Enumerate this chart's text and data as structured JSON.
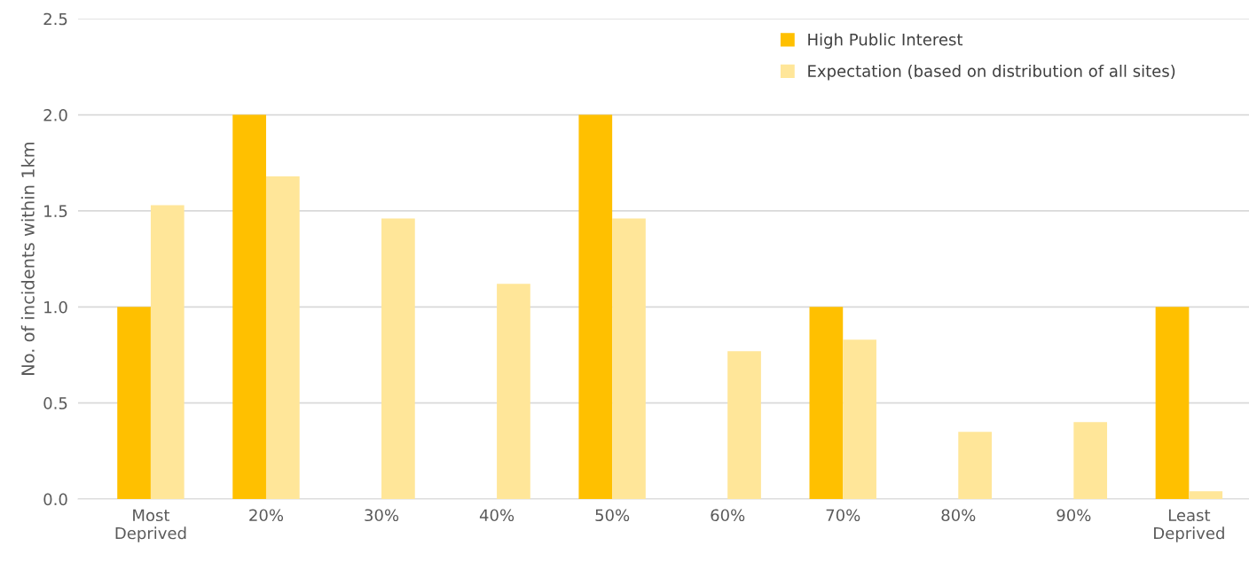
{
  "chart_data": {
    "type": "bar",
    "ylabel": "No. of incidents within 1km",
    "categories": [
      "Most\nDeprived",
      "20%",
      "30%",
      "40%",
      "50%",
      "60%",
      "70%",
      "80%",
      "90%",
      "Least\nDeprived"
    ],
    "series": [
      {
        "name": "High Public Interest",
        "color": "#ffc000",
        "values": [
          1,
          2,
          0,
          0,
          2,
          0,
          1,
          0,
          0,
          1
        ]
      },
      {
        "name": "Expectation (based on distribution of all sites)",
        "color": "#ffe699",
        "values": [
          1.53,
          1.68,
          1.46,
          1.12,
          1.46,
          0.77,
          0.83,
          0.35,
          0.4,
          0.04
        ]
      }
    ],
    "ylim": [
      0,
      2.5
    ],
    "yticks": [
      {
        "value": 0,
        "label": "0.0"
      },
      {
        "value": 0.5,
        "label": "0.5"
      },
      {
        "value": 1,
        "label": "1.0"
      },
      {
        "value": 1.5,
        "label": "1.5"
      },
      {
        "value": 2,
        "label": "2.0"
      },
      {
        "value": 2.5,
        "label": "2.5"
      }
    ],
    "grid": "y",
    "legend": "top right"
  }
}
